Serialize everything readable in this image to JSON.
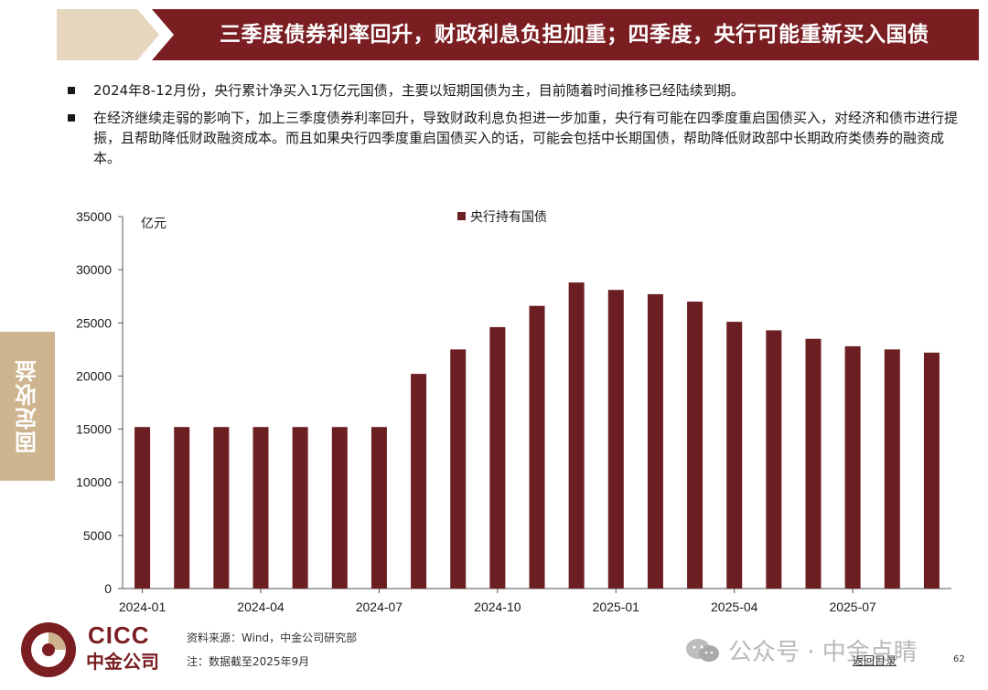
{
  "header": {
    "title": "三季度债券利率回升，财政利息负担加重；四季度，央行可能重新买入国债",
    "accent_color": "#7a1e22",
    "tab_color": "#cdb48f"
  },
  "bullets": [
    "2024年8-12月份，央行累计净买入1万亿元国债，主要以短期国债为主，目前随着时间推移已经陆续到期。",
    "在经济继续走弱的影响下，加上三季度债券利率回升，导致财政利息负担进一步加重，央行有可能在四季度重启国债买入，对经济和债市进行提振，且帮助降低财政融资成本。而且如果央行四季度重启国债买入的话，可能会包括中长期国债，帮助降低财政部中长期政府类债券的融资成本。"
  ],
  "side_tab": {
    "label": "固定收益"
  },
  "chart_data": {
    "type": "bar",
    "unit_label": "亿元",
    "categories": [
      "2024-01",
      "2024-02",
      "2024-03",
      "2024-04",
      "2024-05",
      "2024-06",
      "2024-07",
      "2024-08",
      "2024-09",
      "2024-10",
      "2024-11",
      "2024-12",
      "2025-01",
      "2025-02",
      "2025-03",
      "2025-04",
      "2025-05",
      "2025-06",
      "2025-07",
      "2025-08",
      "2025-09"
    ],
    "x_tick_labels": [
      "2024-01",
      "2024-04",
      "2024-07",
      "2024-10",
      "2025-01",
      "2025-04",
      "2025-07"
    ],
    "y_ticks": [
      0,
      5000,
      10000,
      15000,
      20000,
      25000,
      30000,
      35000
    ],
    "ylim": [
      0,
      35000
    ],
    "series": [
      {
        "name": "央行持有国债",
        "color": "#6b1f22",
        "values": [
          15200,
          15200,
          15200,
          15200,
          15200,
          15200,
          15200,
          20200,
          22500,
          24600,
          26600,
          28800,
          28100,
          27700,
          27000,
          25100,
          24300,
          23500,
          22800,
          22500,
          22200
        ]
      }
    ],
    "legend_position": "top-center",
    "grid": false
  },
  "footer": {
    "logo_en": "CICC",
    "logo_cn": "中金公司",
    "source": "资料来源：Wind，中金公司研究部",
    "note": "注：数据截至2025年9月",
    "watermark": "公众号 · 中金点睛",
    "watermark_icon": "wechat-icon",
    "back_link": "返回目录",
    "page_number": "62"
  }
}
